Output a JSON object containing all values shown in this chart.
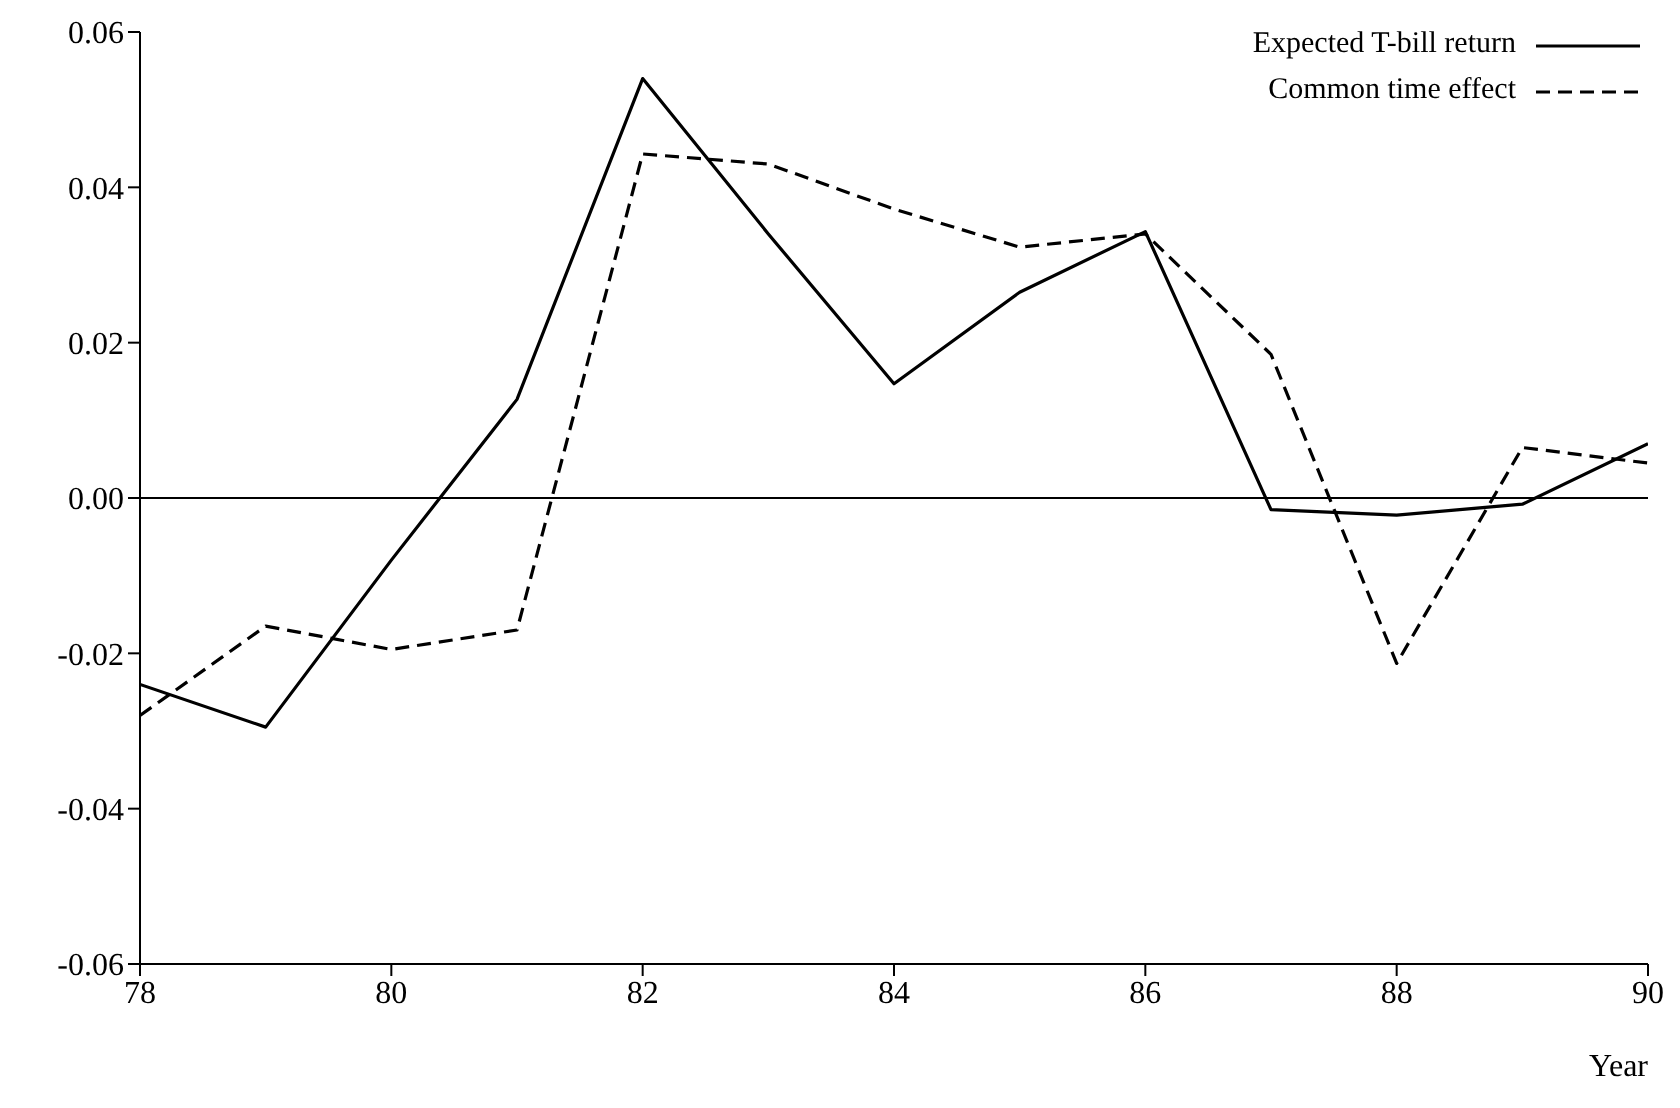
{
  "chart_data": {
    "type": "line",
    "xlabel": "Year",
    "x": [
      78,
      79,
      80,
      81,
      82,
      83,
      84,
      85,
      86,
      87,
      88,
      89,
      90
    ],
    "series": [
      {
        "name": "Expected T-bill return",
        "color": "#000000",
        "line_style": "solid",
        "values": [
          -0.024,
          -0.0295,
          -0.008,
          0.0127,
          0.054,
          0.034,
          0.0147,
          0.0265,
          0.0343,
          -0.0015,
          -0.0022,
          -0.0008,
          0.007
        ]
      },
      {
        "name": "Common time effect",
        "color": "#000000",
        "line_style": "dashed",
        "values": [
          -0.028,
          -0.0165,
          -0.0195,
          -0.017,
          0.0443,
          0.043,
          0.0372,
          0.0323,
          0.034,
          0.0185,
          -0.0213,
          0.0065,
          0.0045
        ]
      }
    ],
    "xlim": [
      78,
      90
    ],
    "xticks": [
      78,
      80,
      82,
      84,
      86,
      88,
      90
    ],
    "ylim": [
      -0.06,
      0.06
    ],
    "yticks": [
      {
        "value": -0.06,
        "label": "-0.06"
      },
      {
        "value": -0.04,
        "label": "-0.04"
      },
      {
        "value": -0.02,
        "label": "-0.02"
      },
      {
        "value": 0,
        "label": "0.00"
      },
      {
        "value": 0.02,
        "label": "0.02"
      },
      {
        "value": 0.04,
        "label": "0.04"
      },
      {
        "value": 0.06,
        "label": "0.06"
      }
    ],
    "ref_lines": [
      {
        "axis": "y",
        "value": 0
      }
    ],
    "grid": false,
    "legend": "top right",
    "marker": "none"
  }
}
